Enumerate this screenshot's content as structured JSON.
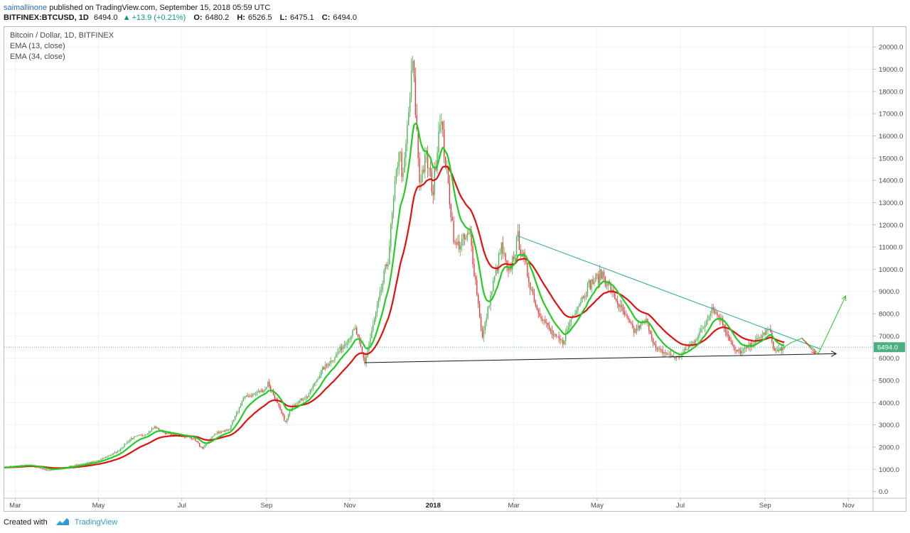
{
  "header": {
    "author": "saimallinone",
    "published_text": "published on TradingView.com, September 15, 2018 05:59 UTC",
    "quote": {
      "symbol": "BITFINEX:BTCUSD, 1D",
      "last": "6494.0",
      "change": "+13.9 (+0.21%)",
      "o_label": "O:",
      "o_val": "6480.2",
      "h_label": "H:",
      "h_val": "6526.5",
      "l_label": "L:",
      "l_val": "6475.1",
      "c_label": "C:",
      "c_val": "6494.0"
    }
  },
  "legend": {
    "main": "Bitcoin / Dollar, 1D, BITFINEX",
    "ema1": "EMA (13, close)",
    "ema2": "EMA (34, close)"
  },
  "footer": {
    "created_with": "Created with",
    "brand": "TradingView"
  },
  "colors": {
    "up_candle": "#4caf50",
    "down_candle": "#e53935",
    "ema_fast": "#22cc22",
    "ema_slow": "#e01010",
    "trendline_upper": "#26a69a",
    "trendline_lower": "#131722",
    "price_line": "#4db6ac",
    "price_badge": "#4caf81",
    "projection_green": "#22cc22",
    "projection_red": "#e53935"
  },
  "chart_data": {
    "type": "candlestick",
    "title": "Bitcoin / Dollar, 1D, BITFINEX",
    "x_ticks": [
      {
        "date": "2017-03-01",
        "label": "Mar"
      },
      {
        "date": "2017-05-01",
        "label": "May"
      },
      {
        "date": "2017-07-01",
        "label": "Jul"
      },
      {
        "date": "2017-09-01",
        "label": "Sep"
      },
      {
        "date": "2017-11-01",
        "label": "Nov"
      },
      {
        "date": "2018-01-01",
        "label": "2018",
        "bold": true
      },
      {
        "date": "2018-03-01",
        "label": "Mar"
      },
      {
        "date": "2018-05-01",
        "label": "May"
      },
      {
        "date": "2018-07-01",
        "label": "Jul"
      },
      {
        "date": "2018-09-01",
        "label": "Sep"
      },
      {
        "date": "2018-11-01",
        "label": "Nov"
      }
    ],
    "x_range": [
      "2017-02-21",
      "2018-11-19"
    ],
    "y_ticks": [
      "0.0",
      "1000.0",
      "2000.0",
      "3000.0",
      "4000.0",
      "5000.0",
      "6000.0",
      "7000.0",
      "8000.0",
      "9000.0",
      "10000.0",
      "11000.0",
      "12000.0",
      "13000.0",
      "14000.0",
      "15000.0",
      "16000.0",
      "17000.0",
      "18000.0",
      "19000.0",
      "20000.0"
    ],
    "ylim": [
      -300,
      20900
    ],
    "last_price": 6494.0,
    "last_price_label": "6494.0",
    "price_path": [
      [
        "2017-02-21",
        1100
      ],
      [
        "2017-03-10",
        1200
      ],
      [
        "2017-03-25",
        950
      ],
      [
        "2017-04-15",
        1200
      ],
      [
        "2017-05-01",
        1400
      ],
      [
        "2017-05-15",
        1800
      ],
      [
        "2017-05-25",
        2400
      ],
      [
        "2017-06-05",
        2600
      ],
      [
        "2017-06-11",
        2900
      ],
      [
        "2017-06-20",
        2600
      ],
      [
        "2017-07-01",
        2500
      ],
      [
        "2017-07-10",
        2400
      ],
      [
        "2017-07-16",
        1900
      ],
      [
        "2017-07-25",
        2600
      ],
      [
        "2017-08-05",
        2800
      ],
      [
        "2017-08-15",
        4200
      ],
      [
        "2017-08-31",
        4600
      ],
      [
        "2017-09-02",
        4900
      ],
      [
        "2017-09-15",
        3100
      ],
      [
        "2017-09-20",
        3900
      ],
      [
        "2017-10-01",
        4300
      ],
      [
        "2017-10-12",
        5500
      ],
      [
        "2017-10-20",
        6000
      ],
      [
        "2017-11-05",
        7300
      ],
      [
        "2017-11-12",
        5800
      ],
      [
        "2017-11-20",
        8000
      ],
      [
        "2017-11-29",
        10500
      ],
      [
        "2017-12-07",
        15500
      ],
      [
        "2017-12-10",
        14000
      ],
      [
        "2017-12-17",
        19300
      ],
      [
        "2017-12-22",
        14000
      ],
      [
        "2017-12-27",
        15000
      ],
      [
        "2018-01-01",
        13500
      ],
      [
        "2018-01-06",
        17000
      ],
      [
        "2018-01-17",
        11000
      ],
      [
        "2018-01-28",
        11500
      ],
      [
        "2018-02-06",
        6900
      ],
      [
        "2018-02-11",
        8500
      ],
      [
        "2018-02-20",
        11000
      ],
      [
        "2018-02-25",
        9700
      ],
      [
        "2018-03-04",
        11400
      ],
      [
        "2018-03-18",
        8200
      ],
      [
        "2018-03-30",
        7000
      ],
      [
        "2018-04-06",
        6700
      ],
      [
        "2018-04-12",
        7800
      ],
      [
        "2018-04-25",
        9300
      ],
      [
        "2018-05-05",
        9800
      ],
      [
        "2018-05-15",
        8600
      ],
      [
        "2018-05-28",
        7200
      ],
      [
        "2018-06-06",
        7700
      ],
      [
        "2018-06-13",
        6400
      ],
      [
        "2018-06-29",
        6000
      ],
      [
        "2018-07-10",
        6700
      ],
      [
        "2018-07-18",
        7400
      ],
      [
        "2018-07-24",
        8300
      ],
      [
        "2018-07-31",
        7700
      ],
      [
        "2018-08-10",
        6300
      ],
      [
        "2018-08-15",
        6300
      ],
      [
        "2018-08-24",
        6700
      ],
      [
        "2018-09-04",
        7300
      ],
      [
        "2018-09-08",
        6300
      ],
      [
        "2018-09-15",
        6494
      ]
    ],
    "annotations": {
      "upper_trendline": {
        "from": [
          "2018-03-04",
          11500
        ],
        "to": [
          "2018-10-12",
          6400
        ]
      },
      "lower_trendline": {
        "from": [
          "2017-11-12",
          5800
        ],
        "to": [
          "2018-10-23",
          6200
        ]
      },
      "projection_green_path": [
        [
          "2018-09-10",
          6300
        ],
        [
          "2018-09-20",
          6700
        ],
        [
          "2018-09-28",
          6900
        ],
        [
          "2018-10-10",
          6200
        ],
        [
          "2018-10-30",
          8800
        ]
      ],
      "projection_red_path": [
        [
          "2018-09-28",
          6900
        ],
        [
          "2018-10-08",
          6200
        ]
      ]
    }
  }
}
